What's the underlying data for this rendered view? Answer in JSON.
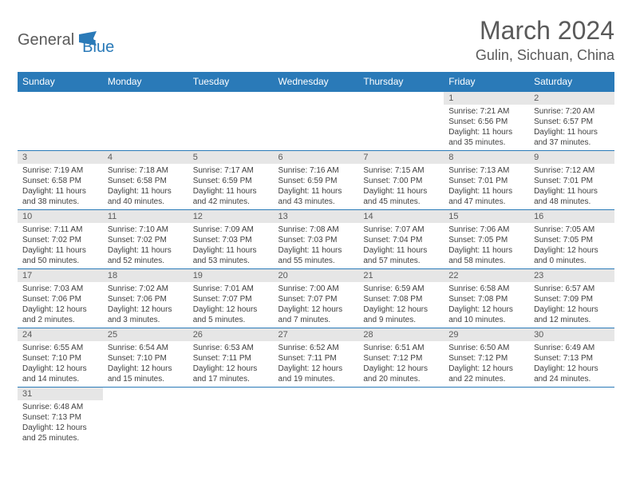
{
  "logo": {
    "text1": "General",
    "text2": "Blue"
  },
  "title": "March 2024",
  "location": "Gulin, Sichuan, China",
  "colors": {
    "header_bg": "#2a7ab8",
    "header_text": "#ffffff",
    "daynum_bg": "#e6e6e6",
    "text_grey": "#5a5a5a",
    "cell_border": "#2a7ab8"
  },
  "weekdays": [
    "Sunday",
    "Monday",
    "Tuesday",
    "Wednesday",
    "Thursday",
    "Friday",
    "Saturday"
  ],
  "weeks": [
    [
      {
        "num": "",
        "sunrise": "",
        "sunset": "",
        "daylight": ""
      },
      {
        "num": "",
        "sunrise": "",
        "sunset": "",
        "daylight": ""
      },
      {
        "num": "",
        "sunrise": "",
        "sunset": "",
        "daylight": ""
      },
      {
        "num": "",
        "sunrise": "",
        "sunset": "",
        "daylight": ""
      },
      {
        "num": "",
        "sunrise": "",
        "sunset": "",
        "daylight": ""
      },
      {
        "num": "1",
        "sunrise": "Sunrise: 7:21 AM",
        "sunset": "Sunset: 6:56 PM",
        "daylight": "Daylight: 11 hours and 35 minutes."
      },
      {
        "num": "2",
        "sunrise": "Sunrise: 7:20 AM",
        "sunset": "Sunset: 6:57 PM",
        "daylight": "Daylight: 11 hours and 37 minutes."
      }
    ],
    [
      {
        "num": "3",
        "sunrise": "Sunrise: 7:19 AM",
        "sunset": "Sunset: 6:58 PM",
        "daylight": "Daylight: 11 hours and 38 minutes."
      },
      {
        "num": "4",
        "sunrise": "Sunrise: 7:18 AM",
        "sunset": "Sunset: 6:58 PM",
        "daylight": "Daylight: 11 hours and 40 minutes."
      },
      {
        "num": "5",
        "sunrise": "Sunrise: 7:17 AM",
        "sunset": "Sunset: 6:59 PM",
        "daylight": "Daylight: 11 hours and 42 minutes."
      },
      {
        "num": "6",
        "sunrise": "Sunrise: 7:16 AM",
        "sunset": "Sunset: 6:59 PM",
        "daylight": "Daylight: 11 hours and 43 minutes."
      },
      {
        "num": "7",
        "sunrise": "Sunrise: 7:15 AM",
        "sunset": "Sunset: 7:00 PM",
        "daylight": "Daylight: 11 hours and 45 minutes."
      },
      {
        "num": "8",
        "sunrise": "Sunrise: 7:13 AM",
        "sunset": "Sunset: 7:01 PM",
        "daylight": "Daylight: 11 hours and 47 minutes."
      },
      {
        "num": "9",
        "sunrise": "Sunrise: 7:12 AM",
        "sunset": "Sunset: 7:01 PM",
        "daylight": "Daylight: 11 hours and 48 minutes."
      }
    ],
    [
      {
        "num": "10",
        "sunrise": "Sunrise: 7:11 AM",
        "sunset": "Sunset: 7:02 PM",
        "daylight": "Daylight: 11 hours and 50 minutes."
      },
      {
        "num": "11",
        "sunrise": "Sunrise: 7:10 AM",
        "sunset": "Sunset: 7:02 PM",
        "daylight": "Daylight: 11 hours and 52 minutes."
      },
      {
        "num": "12",
        "sunrise": "Sunrise: 7:09 AM",
        "sunset": "Sunset: 7:03 PM",
        "daylight": "Daylight: 11 hours and 53 minutes."
      },
      {
        "num": "13",
        "sunrise": "Sunrise: 7:08 AM",
        "sunset": "Sunset: 7:03 PM",
        "daylight": "Daylight: 11 hours and 55 minutes."
      },
      {
        "num": "14",
        "sunrise": "Sunrise: 7:07 AM",
        "sunset": "Sunset: 7:04 PM",
        "daylight": "Daylight: 11 hours and 57 minutes."
      },
      {
        "num": "15",
        "sunrise": "Sunrise: 7:06 AM",
        "sunset": "Sunset: 7:05 PM",
        "daylight": "Daylight: 11 hours and 58 minutes."
      },
      {
        "num": "16",
        "sunrise": "Sunrise: 7:05 AM",
        "sunset": "Sunset: 7:05 PM",
        "daylight": "Daylight: 12 hours and 0 minutes."
      }
    ],
    [
      {
        "num": "17",
        "sunrise": "Sunrise: 7:03 AM",
        "sunset": "Sunset: 7:06 PM",
        "daylight": "Daylight: 12 hours and 2 minutes."
      },
      {
        "num": "18",
        "sunrise": "Sunrise: 7:02 AM",
        "sunset": "Sunset: 7:06 PM",
        "daylight": "Daylight: 12 hours and 3 minutes."
      },
      {
        "num": "19",
        "sunrise": "Sunrise: 7:01 AM",
        "sunset": "Sunset: 7:07 PM",
        "daylight": "Daylight: 12 hours and 5 minutes."
      },
      {
        "num": "20",
        "sunrise": "Sunrise: 7:00 AM",
        "sunset": "Sunset: 7:07 PM",
        "daylight": "Daylight: 12 hours and 7 minutes."
      },
      {
        "num": "21",
        "sunrise": "Sunrise: 6:59 AM",
        "sunset": "Sunset: 7:08 PM",
        "daylight": "Daylight: 12 hours and 9 minutes."
      },
      {
        "num": "22",
        "sunrise": "Sunrise: 6:58 AM",
        "sunset": "Sunset: 7:08 PM",
        "daylight": "Daylight: 12 hours and 10 minutes."
      },
      {
        "num": "23",
        "sunrise": "Sunrise: 6:57 AM",
        "sunset": "Sunset: 7:09 PM",
        "daylight": "Daylight: 12 hours and 12 minutes."
      }
    ],
    [
      {
        "num": "24",
        "sunrise": "Sunrise: 6:55 AM",
        "sunset": "Sunset: 7:10 PM",
        "daylight": "Daylight: 12 hours and 14 minutes."
      },
      {
        "num": "25",
        "sunrise": "Sunrise: 6:54 AM",
        "sunset": "Sunset: 7:10 PM",
        "daylight": "Daylight: 12 hours and 15 minutes."
      },
      {
        "num": "26",
        "sunrise": "Sunrise: 6:53 AM",
        "sunset": "Sunset: 7:11 PM",
        "daylight": "Daylight: 12 hours and 17 minutes."
      },
      {
        "num": "27",
        "sunrise": "Sunrise: 6:52 AM",
        "sunset": "Sunset: 7:11 PM",
        "daylight": "Daylight: 12 hours and 19 minutes."
      },
      {
        "num": "28",
        "sunrise": "Sunrise: 6:51 AM",
        "sunset": "Sunset: 7:12 PM",
        "daylight": "Daylight: 12 hours and 20 minutes."
      },
      {
        "num": "29",
        "sunrise": "Sunrise: 6:50 AM",
        "sunset": "Sunset: 7:12 PM",
        "daylight": "Daylight: 12 hours and 22 minutes."
      },
      {
        "num": "30",
        "sunrise": "Sunrise: 6:49 AM",
        "sunset": "Sunset: 7:13 PM",
        "daylight": "Daylight: 12 hours and 24 minutes."
      }
    ],
    [
      {
        "num": "31",
        "sunrise": "Sunrise: 6:48 AM",
        "sunset": "Sunset: 7:13 PM",
        "daylight": "Daylight: 12 hours and 25 minutes."
      },
      {
        "num": "",
        "sunrise": "",
        "sunset": "",
        "daylight": ""
      },
      {
        "num": "",
        "sunrise": "",
        "sunset": "",
        "daylight": ""
      },
      {
        "num": "",
        "sunrise": "",
        "sunset": "",
        "daylight": ""
      },
      {
        "num": "",
        "sunrise": "",
        "sunset": "",
        "daylight": ""
      },
      {
        "num": "",
        "sunrise": "",
        "sunset": "",
        "daylight": ""
      },
      {
        "num": "",
        "sunrise": "",
        "sunset": "",
        "daylight": ""
      }
    ]
  ]
}
